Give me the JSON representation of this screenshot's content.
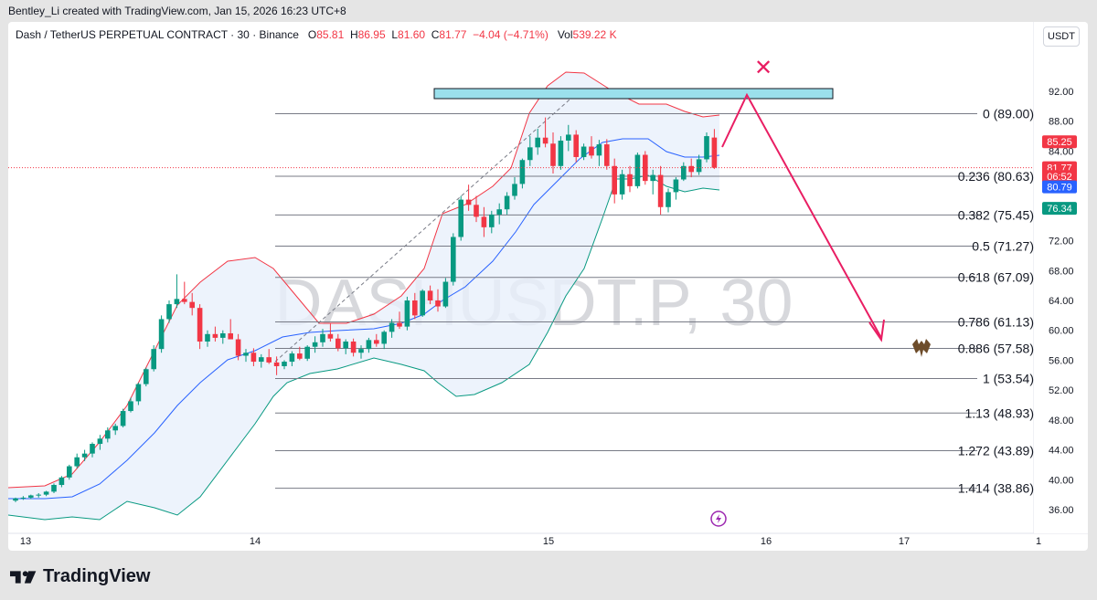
{
  "caption": "Bentley_Li created with TradingView.com, Jan 15, 2026 16:23 UTC+8",
  "header": {
    "symbol": "Dash / TetherUS PERPETUAL CONTRACT · 30 · Binance",
    "o_label": "O",
    "o_value": "85.81",
    "h_label": "H",
    "h_value": "86.95",
    "l_label": "L",
    "l_value": "81.60",
    "c_label": "C",
    "c_value": "81.77",
    "change": "−4.04 (−4.71%)",
    "vol_label": "Vol",
    "vol_value": "539.22 K"
  },
  "currency_button": "USDT",
  "watermark": "DASHUSDT.P, 30",
  "price_axis": {
    "ticks": [
      "92.00",
      "88.00",
      "84.00",
      "80.00",
      "76.00",
      "72.00",
      "68.00",
      "64.00",
      "60.00",
      "56.00",
      "52.00",
      "48.00",
      "44.00",
      "40.00",
      "36.00"
    ],
    "tick_values": [
      92,
      88,
      84,
      80,
      76,
      72,
      68,
      64,
      60,
      56,
      52,
      48,
      44,
      40,
      36
    ],
    "badges": [
      {
        "text": "85.25",
        "price": 85.25,
        "color": "#f23645"
      },
      {
        "text": "81.77",
        "price": 81.77,
        "color": "#f23645"
      },
      {
        "text": "06:52",
        "price": 80.6,
        "color": "#f23645"
      },
      {
        "text": "80.79",
        "price": 79.2,
        "color": "#2962ff"
      },
      {
        "text": "76.34",
        "price": 76.34,
        "color": "#089981"
      }
    ]
  },
  "time_axis": {
    "labels": [
      "13",
      "14",
      "15",
      "16",
      "17",
      "1"
    ]
  },
  "fib_levels": [
    {
      "label": "0 (89.00)",
      "price": 89.0
    },
    {
      "label": "0.236 (80.63)",
      "price": 80.63
    },
    {
      "label": "0.382 (75.45)",
      "price": 75.45
    },
    {
      "label": "0.5 (71.27)",
      "price": 71.27
    },
    {
      "label": "0.618 (67.09)",
      "price": 67.09
    },
    {
      "label": "0.786 (61.13)",
      "price": 61.13
    },
    {
      "label": "0.886 (57.58)",
      "price": 57.58
    },
    {
      "label": "1 (53.54)",
      "price": 53.54
    },
    {
      "label": "1.13 (48.93)",
      "price": 48.93
    },
    {
      "label": "1.272 (43.89)",
      "price": 43.89
    },
    {
      "label": "1.414 (38.86)",
      "price": 38.86
    }
  ],
  "colors": {
    "up": "#089981",
    "down": "#f23645",
    "basis": "#2962ff",
    "upper_band": "#f23645",
    "lower_band": "#089981",
    "band_fill": "#e8f0fb",
    "zone": "#9be0ec",
    "arrow": "#e91e63",
    "fib": "#787b86"
  },
  "annotations": {
    "reject_mark": "✕",
    "target_icon": "bat-icon",
    "event_icon": "lightning-icon"
  },
  "branding": "TradingView"
}
